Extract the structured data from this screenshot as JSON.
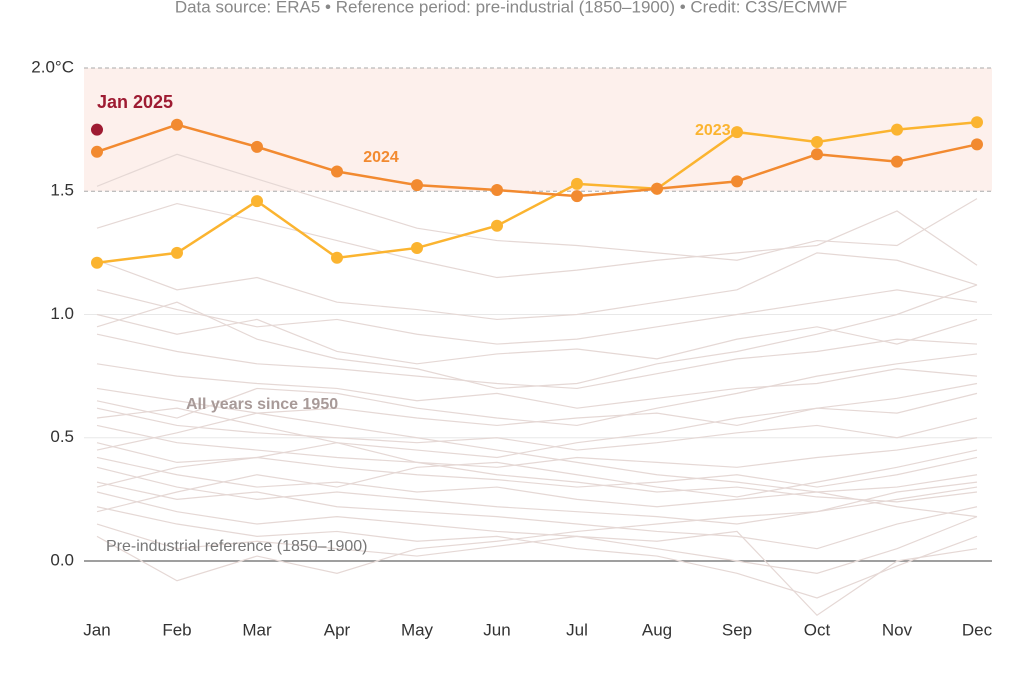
{
  "chart_data": {
    "type": "line",
    "subtitle": "Data source: ERA5 • Reference period: pre-industrial (1850–1900) • Credit: C3S/ECMWF",
    "categories": [
      "Jan",
      "Feb",
      "Mar",
      "Apr",
      "May",
      "Jun",
      "Jul",
      "Aug",
      "Sep",
      "Oct",
      "Nov",
      "Dec"
    ],
    "ylim": [
      -0.25,
      2.0
    ],
    "yticks": [
      {
        "value": 0,
        "label": "0.0"
      },
      {
        "value": 0.5,
        "label": "0.5"
      },
      {
        "value": 1,
        "label": "1.0"
      },
      {
        "value": 1.5,
        "label": "1.5"
      },
      {
        "value": 2,
        "label": "2.0°C"
      }
    ],
    "band": [
      1.5,
      2.0
    ],
    "band_color": "#fdf0ec",
    "series": [
      {
        "name": "2023",
        "color": "#fbb430",
        "values": [
          1.21,
          1.25,
          1.46,
          1.23,
          1.27,
          1.36,
          1.53,
          1.51,
          1.74,
          1.7,
          1.75,
          1.78
        ]
      },
      {
        "name": "2024",
        "color": "#f28a30",
        "values": [
          1.66,
          1.77,
          1.68,
          1.58,
          1.525,
          1.505,
          1.48,
          1.51,
          1.54,
          1.65,
          1.62,
          1.69
        ]
      },
      {
        "name": "Jan 2025",
        "color": "#9e1b32",
        "values": [
          1.75,
          null,
          null,
          null,
          null,
          null,
          null,
          null,
          null,
          null,
          null,
          null
        ]
      }
    ],
    "background_series": {
      "label": "All years since 1950",
      "color": "#e5d8d5",
      "values": [
        [
          1.52,
          1.65,
          1.55,
          1.45,
          1.35,
          1.3,
          1.28,
          1.25,
          1.22,
          1.3,
          1.28,
          1.47
        ],
        [
          1.35,
          1.45,
          1.38,
          1.3,
          1.22,
          1.15,
          1.18,
          1.22,
          1.25,
          1.28,
          1.42,
          1.2
        ],
        [
          1.22,
          1.1,
          1.15,
          1.05,
          1.02,
          0.98,
          1.0,
          1.05,
          1.1,
          1.25,
          1.22,
          1.12
        ],
        [
          1.1,
          1.02,
          0.95,
          0.98,
          0.92,
          0.88,
          0.9,
          0.95,
          1.0,
          1.05,
          1.1,
          1.05
        ],
        [
          1.0,
          0.92,
          0.98,
          0.85,
          0.8,
          0.84,
          0.86,
          0.82,
          0.9,
          0.95,
          0.88,
          0.98
        ],
        [
          0.92,
          0.85,
          0.8,
          0.78,
          0.75,
          0.72,
          0.7,
          0.76,
          0.82,
          0.85,
          0.9,
          0.88
        ],
        [
          0.8,
          0.75,
          0.72,
          0.7,
          0.65,
          0.68,
          0.62,
          0.66,
          0.7,
          0.72,
          0.78,
          0.75
        ],
        [
          0.7,
          0.65,
          0.6,
          0.62,
          0.58,
          0.55,
          0.58,
          0.6,
          0.55,
          0.62,
          0.6,
          0.68
        ],
        [
          0.62,
          0.55,
          0.52,
          0.5,
          0.48,
          0.5,
          0.45,
          0.48,
          0.52,
          0.55,
          0.5,
          0.58
        ],
        [
          0.55,
          0.48,
          0.45,
          0.42,
          0.4,
          0.38,
          0.42,
          0.4,
          0.38,
          0.42,
          0.45,
          0.5
        ],
        [
          0.48,
          0.4,
          0.42,
          0.38,
          0.35,
          0.33,
          0.3,
          0.32,
          0.35,
          0.3,
          0.35,
          0.42
        ],
        [
          0.42,
          0.35,
          0.3,
          0.32,
          0.28,
          0.3,
          0.25,
          0.22,
          0.25,
          0.28,
          0.3,
          0.35
        ],
        [
          0.38,
          0.3,
          0.25,
          0.28,
          0.25,
          0.22,
          0.2,
          0.18,
          0.15,
          0.2,
          0.25,
          0.3
        ],
        [
          0.32,
          0.25,
          0.28,
          0.22,
          0.2,
          0.18,
          0.15,
          0.12,
          0.1,
          0.05,
          0.15,
          0.22
        ],
        [
          0.28,
          0.2,
          0.15,
          0.18,
          0.15,
          0.12,
          0.1,
          0.05,
          0.0,
          -0.05,
          0.05,
          0.18
        ],
        [
          0.22,
          0.15,
          0.1,
          0.12,
          0.08,
          0.1,
          0.05,
          0.02,
          -0.05,
          -0.15,
          -0.02,
          0.1
        ],
        [
          0.15,
          0.05,
          0.08,
          0.05,
          0.02,
          0.06,
          0.1,
          0.08,
          0.12,
          -0.22,
          0.0,
          0.05
        ],
        [
          0.1,
          -0.08,
          0.02,
          -0.05,
          0.05,
          0.08,
          0.12,
          0.15,
          0.18,
          0.2,
          0.28,
          0.32
        ],
        [
          0.58,
          0.62,
          0.55,
          0.48,
          0.4,
          0.35,
          0.32,
          0.28,
          0.3,
          0.26,
          0.24,
          0.28
        ],
        [
          0.45,
          0.52,
          0.6,
          0.55,
          0.5,
          0.45,
          0.4,
          0.35,
          0.32,
          0.28,
          0.22,
          0.18
        ],
        [
          0.95,
          1.05,
          0.9,
          0.82,
          0.78,
          0.7,
          0.72,
          0.8,
          0.85,
          0.92,
          1.0,
          1.12
        ],
        [
          0.3,
          0.38,
          0.42,
          0.48,
          0.45,
          0.42,
          0.48,
          0.52,
          0.58,
          0.62,
          0.66,
          0.72
        ],
        [
          0.2,
          0.28,
          0.35,
          0.3,
          0.38,
          0.4,
          0.35,
          0.3,
          0.26,
          0.32,
          0.38,
          0.45
        ],
        [
          0.65,
          0.58,
          0.7,
          0.68,
          0.62,
          0.58,
          0.55,
          0.62,
          0.68,
          0.75,
          0.8,
          0.84
        ]
      ]
    },
    "annotations": [
      "Pre-industrial reference (1850–1900)"
    ]
  }
}
